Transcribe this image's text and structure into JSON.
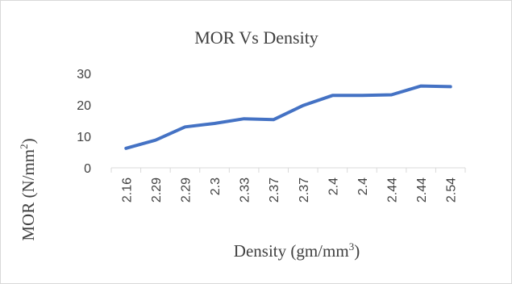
{
  "chart_data": {
    "type": "line",
    "title": "MOR Vs Density",
    "xlabel": {
      "text": "Density (gm/mm",
      "sup": "3",
      "tail": ")"
    },
    "ylabel": {
      "text": "MOR (N/mm",
      "sup": "2",
      "tail": ")"
    },
    "categories": [
      "2.16",
      "2.29",
      "2.29",
      "2.3",
      "2.33",
      "2.37",
      "2.37",
      "2.4",
      "2.4",
      "2.44",
      "2.44",
      "2.54"
    ],
    "yticks": [
      0,
      10,
      20,
      30
    ],
    "ylim": [
      0,
      30
    ],
    "grid": false,
    "series": [
      {
        "color": "#4472c4",
        "values": [
          6.2,
          8.8,
          13.0,
          14.1,
          15.6,
          15.3,
          19.8,
          23.0,
          23.0,
          23.2,
          26.0,
          25.8
        ]
      }
    ]
  }
}
